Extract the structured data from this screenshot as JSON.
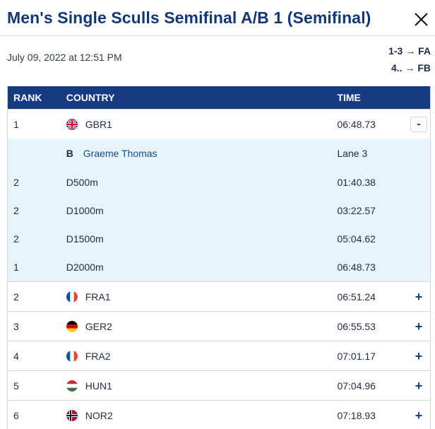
{
  "title": "Men's Single Sculls Semifinal A/B 1 (Semifinal)",
  "datetime": "July 09, 2022 at 12:51 PM",
  "legend": [
    {
      "range": "1-3",
      "arrow": "→",
      "dest": "FA"
    },
    {
      "range": "4..",
      "arrow": "→",
      "dest": "FB"
    }
  ],
  "columns": {
    "rank": "RANK",
    "country": "COUNTRY",
    "time": "TIME"
  },
  "expanded": {
    "rank": "1",
    "country": "GBR1",
    "time": "06:48.73",
    "flag": "gb-flag-icon",
    "toggle": "-",
    "crew": {
      "seat": "B",
      "name": "Graeme Thomas",
      "lane": "Lane 3"
    },
    "splits": [
      {
        "rank": "2",
        "distance": "D500m",
        "time": "01:40.38"
      },
      {
        "rank": "2",
        "distance": "D1000m",
        "time": "03:22.57"
      },
      {
        "rank": "2",
        "distance": "D1500m",
        "time": "05:04.62"
      },
      {
        "rank": "1",
        "distance": "D2000m",
        "time": "06:48.73"
      }
    ]
  },
  "rows": [
    {
      "rank": "2",
      "country": "FRA1",
      "time": "06:51.24",
      "flag": "fr-flag-icon",
      "toggle": "+"
    },
    {
      "rank": "3",
      "country": "GER2",
      "time": "06:55.53",
      "flag": "de-flag-icon",
      "toggle": "+"
    },
    {
      "rank": "4",
      "country": "FRA2",
      "time": "07:01.17",
      "flag": "fr-flag-icon",
      "toggle": "+"
    },
    {
      "rank": "5",
      "country": "HUN1",
      "time": "07:04.96",
      "flag": "hu-flag-icon",
      "toggle": "+"
    },
    {
      "rank": "6",
      "country": "NOR2",
      "time": "07:18.93",
      "flag": "no-flag-icon",
      "toggle": "+"
    }
  ],
  "colors": {
    "header_bg": "#163b82",
    "title": "#12367a",
    "detail_bg": "#e6f4fb",
    "accent": "#1a3e82"
  }
}
